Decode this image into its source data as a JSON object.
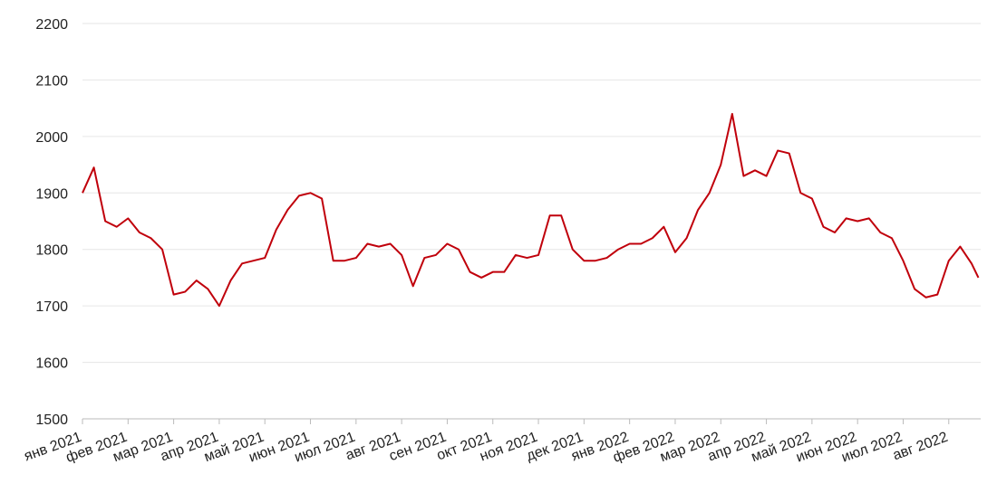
{
  "chart_data": {
    "type": "line",
    "x": [
      0,
      0.25,
      0.5,
      0.75,
      1,
      1.25,
      1.5,
      1.75,
      2,
      2.25,
      2.5,
      2.75,
      3,
      3.25,
      3.5,
      3.75,
      4,
      4.25,
      4.5,
      4.75,
      5,
      5.25,
      5.5,
      5.75,
      6,
      6.25,
      6.5,
      6.75,
      7,
      7.25,
      7.5,
      7.75,
      8,
      8.25,
      8.5,
      8.75,
      9,
      9.25,
      9.5,
      9.75,
      10,
      10.25,
      10.5,
      10.75,
      11,
      11.25,
      11.5,
      11.75,
      12,
      12.25,
      12.5,
      12.75,
      13,
      13.25,
      13.5,
      13.75,
      14,
      14.25,
      14.5,
      14.75,
      15,
      15.25,
      15.5,
      15.75,
      16,
      16.25,
      16.5,
      16.75,
      17,
      17.25,
      17.5,
      17.75,
      18,
      18.25,
      18.5,
      18.75,
      19,
      19.25,
      19.5,
      19.65
    ],
    "series": [
      {
        "color": "#c0000b",
        "values": [
          1900,
          1945,
          1850,
          1840,
          1855,
          1830,
          1820,
          1800,
          1720,
          1725,
          1745,
          1730,
          1700,
          1745,
          1775,
          1780,
          1785,
          1835,
          1870,
          1895,
          1900,
          1890,
          1780,
          1780,
          1785,
          1810,
          1805,
          1810,
          1790,
          1735,
          1785,
          1790,
          1810,
          1800,
          1760,
          1750,
          1760,
          1760,
          1790,
          1785,
          1790,
          1860,
          1860,
          1800,
          1780,
          1780,
          1785,
          1800,
          1810,
          1810,
          1820,
          1840,
          1795,
          1820,
          1870,
          1900,
          1950,
          2040,
          1930,
          1940,
          1930,
          1975,
          1970,
          1900,
          1890,
          1840,
          1830,
          1855,
          1850,
          1855,
          1830,
          1820,
          1780,
          1730,
          1715,
          1720,
          1780,
          1805,
          1775,
          1750
        ]
      }
    ],
    "xlim": [
      0,
      19.7
    ],
    "xticks": [
      {
        "value": 0,
        "label": "янв 2021"
      },
      {
        "value": 1,
        "label": "фев 2021"
      },
      {
        "value": 2,
        "label": "мар 2021"
      },
      {
        "value": 3,
        "label": "апр 2021"
      },
      {
        "value": 4,
        "label": "май 2021"
      },
      {
        "value": 5,
        "label": "июн 2021"
      },
      {
        "value": 6,
        "label": "июл 2021"
      },
      {
        "value": 7,
        "label": "авг 2021"
      },
      {
        "value": 8,
        "label": "сен 2021"
      },
      {
        "value": 9,
        "label": "окт 2021"
      },
      {
        "value": 10,
        "label": "ноя 2021"
      },
      {
        "value": 11,
        "label": "дек 2021"
      },
      {
        "value": 12,
        "label": "янв 2022"
      },
      {
        "value": 13,
        "label": "фев 2022"
      },
      {
        "value": 14,
        "label": "мар 2022"
      },
      {
        "value": 15,
        "label": "апр 2022"
      },
      {
        "value": 16,
        "label": "май 2022"
      },
      {
        "value": 17,
        "label": "июн 2022"
      },
      {
        "value": 18,
        "label": "июл 2022"
      },
      {
        "value": 19,
        "label": "авг 2022"
      }
    ],
    "ylim": [
      1500,
      2200
    ],
    "yticks": [
      1500,
      1600,
      1700,
      1800,
      1900,
      2000,
      2100,
      2200
    ],
    "grid": true
  }
}
